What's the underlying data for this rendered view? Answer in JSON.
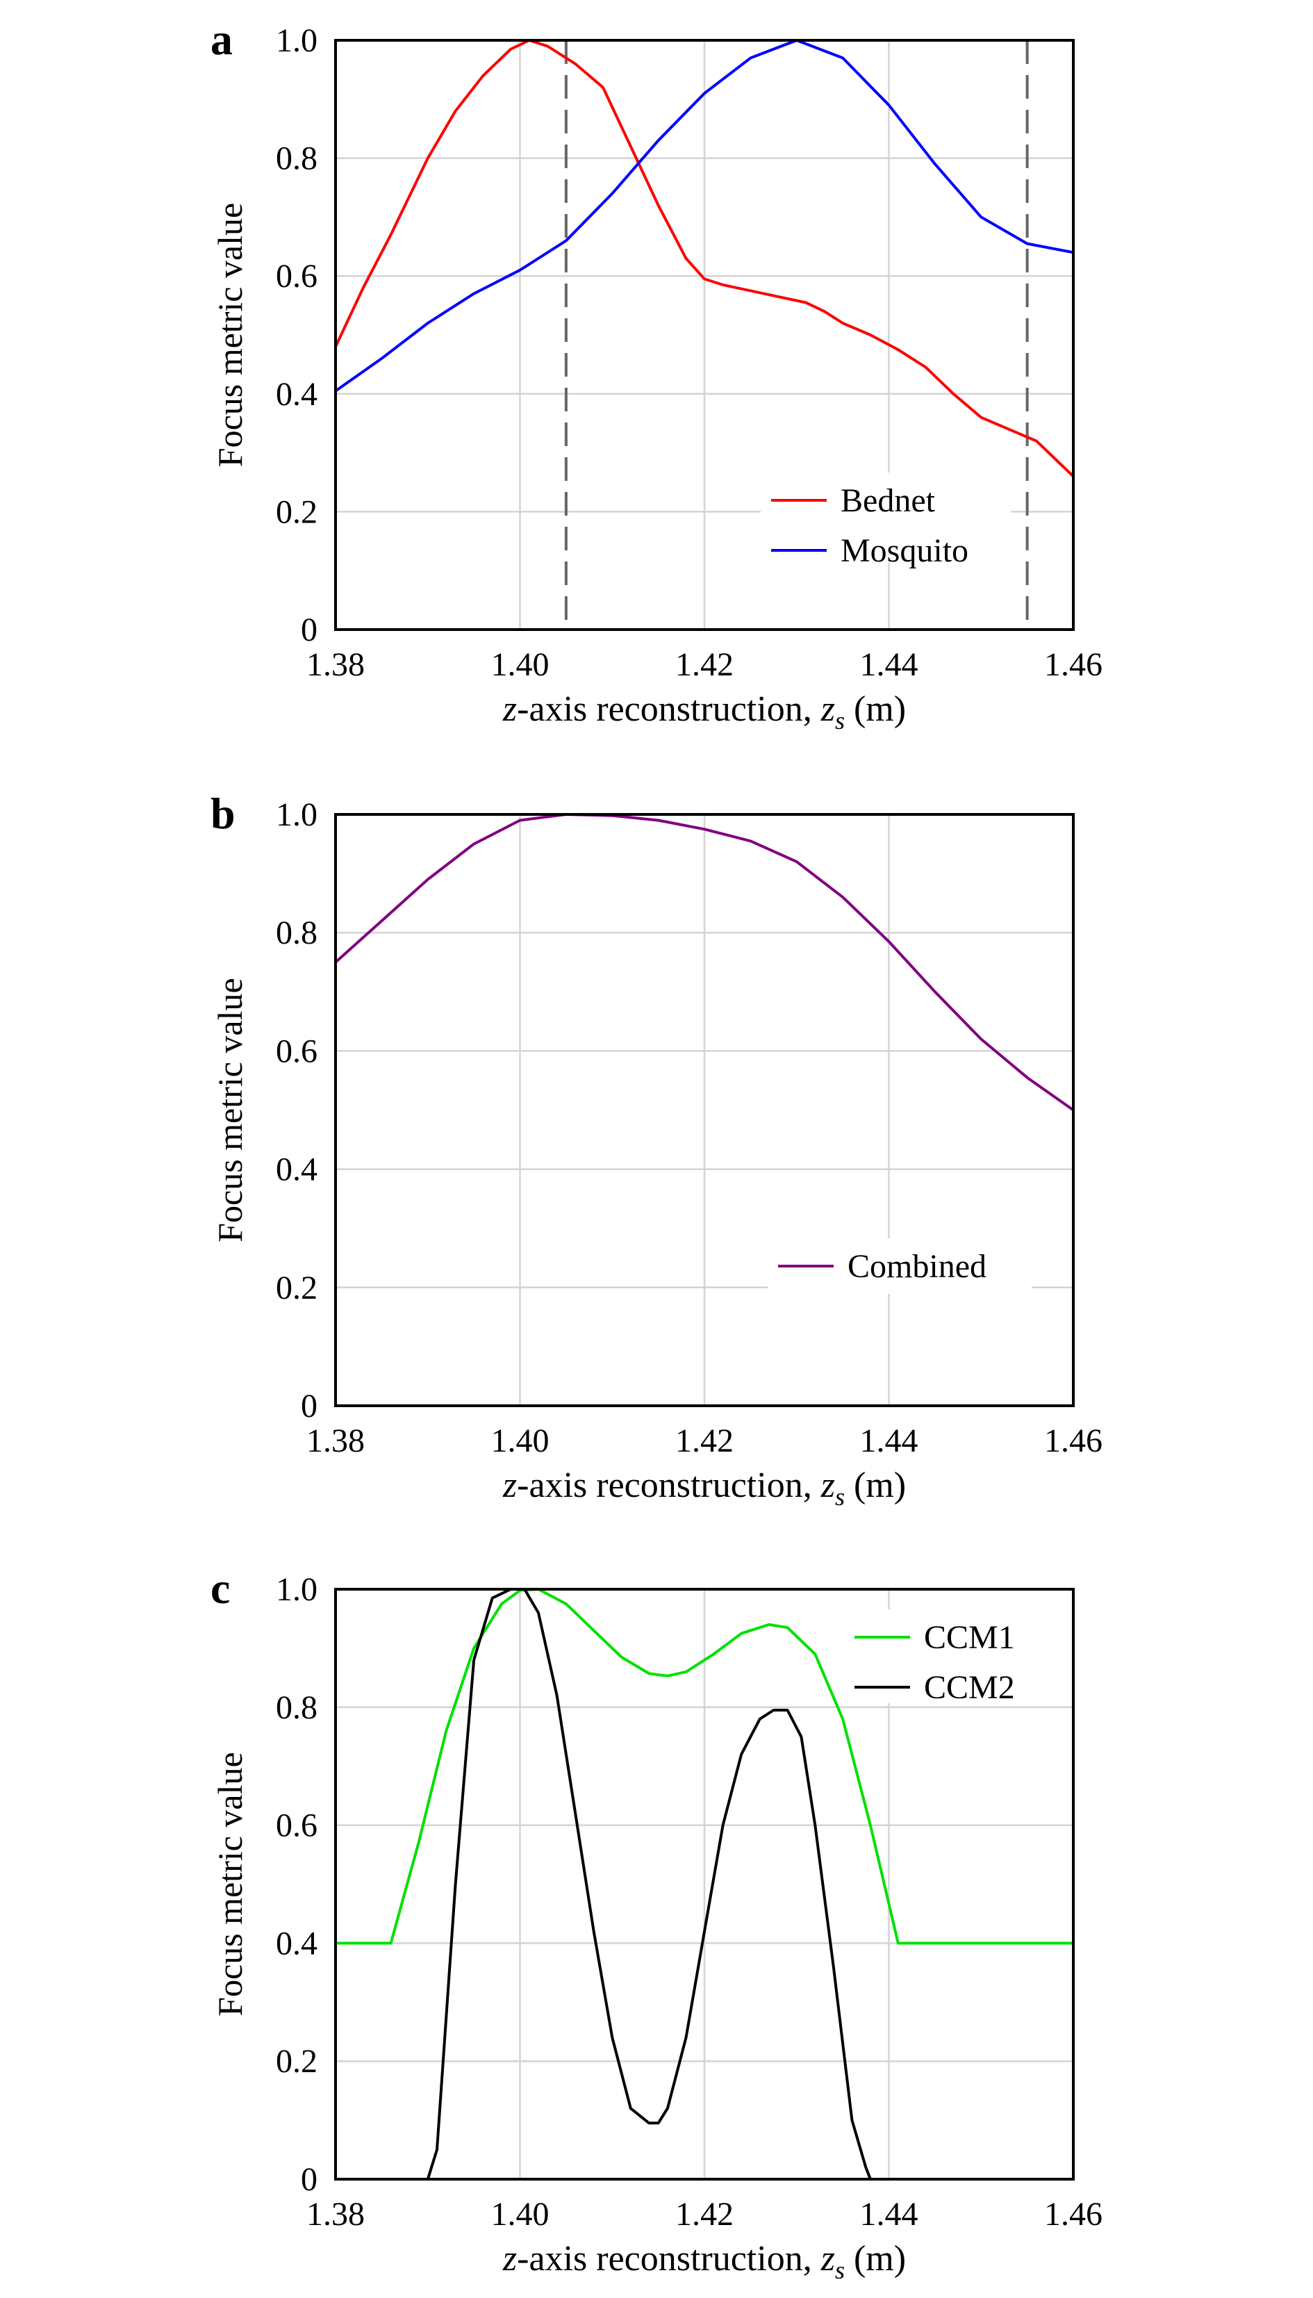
{
  "figure": {
    "panels": [
      {
        "letter": "a",
        "ylabel": "Focus metric value",
        "xlabel_var": "z",
        "xlabel_mid": "-axis reconstruction, ",
        "xlabel_sub_var": "z",
        "xlabel_sub": "s",
        "xlabel_unit": " (m)",
        "legend": [
          "Bednet",
          "Mosquito"
        ]
      },
      {
        "letter": "b",
        "ylabel": "Focus metric value",
        "xlabel_var": "z",
        "xlabel_mid": "-axis reconstruction, ",
        "xlabel_sub_var": "z",
        "xlabel_sub": "s",
        "xlabel_unit": " (m)",
        "legend": [
          "Combined"
        ]
      },
      {
        "letter": "c",
        "ylabel": "Focus metric value",
        "xlabel_var": "z",
        "xlabel_mid": "-axis reconstruction, ",
        "xlabel_sub_var": "z",
        "xlabel_sub": "s",
        "xlabel_unit": " (m)",
        "legend": [
          "CCM1",
          "CCM2"
        ]
      }
    ]
  },
  "chart_data": [
    {
      "type": "line",
      "panel": "a",
      "xlabel": "z-axis reconstruction, z_s (m)",
      "ylabel": "Focus metric value",
      "xlim": [
        1.38,
        1.46
      ],
      "ylim": [
        0,
        1.0
      ],
      "xticks": [
        "1.38",
        "1.40",
        "1.42",
        "1.44",
        "1.46"
      ],
      "yticks": [
        "0",
        "0.2",
        "0.4",
        "0.6",
        "0.8",
        "1.0"
      ],
      "grid": true,
      "legend_position": "bottom-right",
      "vlines_dashed": [
        1.405,
        1.455
      ],
      "series": [
        {
          "name": "Bednet",
          "color": "#ff0000",
          "x": [
            1.38,
            1.383,
            1.386,
            1.39,
            1.393,
            1.396,
            1.399,
            1.401,
            1.403,
            1.406,
            1.409,
            1.412,
            1.415,
            1.418,
            1.42,
            1.422,
            1.425,
            1.428,
            1.431,
            1.433,
            1.435,
            1.438,
            1.441,
            1.444,
            1.447,
            1.45,
            1.453,
            1.456,
            1.46
          ],
          "y": [
            0.48,
            0.58,
            0.67,
            0.8,
            0.88,
            0.94,
            0.985,
            1.0,
            0.99,
            0.96,
            0.92,
            0.82,
            0.72,
            0.63,
            0.595,
            0.585,
            0.575,
            0.565,
            0.555,
            0.54,
            0.52,
            0.5,
            0.475,
            0.445,
            0.4,
            0.36,
            0.34,
            0.32,
            0.26
          ]
        },
        {
          "name": "Mosquito",
          "color": "#0000ff",
          "x": [
            1.38,
            1.385,
            1.39,
            1.395,
            1.4,
            1.405,
            1.41,
            1.415,
            1.42,
            1.425,
            1.43,
            1.435,
            1.44,
            1.445,
            1.45,
            1.455,
            1.46
          ],
          "y": [
            0.405,
            0.46,
            0.52,
            0.57,
            0.61,
            0.66,
            0.74,
            0.83,
            0.91,
            0.97,
            1.0,
            0.97,
            0.89,
            0.79,
            0.7,
            0.655,
            0.64
          ]
        }
      ]
    },
    {
      "type": "line",
      "panel": "b",
      "xlabel": "z-axis reconstruction, z_s (m)",
      "ylabel": "Focus metric value",
      "xlim": [
        1.38,
        1.46
      ],
      "ylim": [
        0,
        1.0
      ],
      "xticks": [
        "1.38",
        "1.40",
        "1.42",
        "1.44",
        "1.46"
      ],
      "yticks": [
        "0",
        "0.2",
        "0.4",
        "0.6",
        "0.8",
        "1.0"
      ],
      "grid": true,
      "legend_position": "bottom-right",
      "series": [
        {
          "name": "Combined",
          "color": "#800080",
          "x": [
            1.38,
            1.385,
            1.39,
            1.395,
            1.4,
            1.405,
            1.41,
            1.415,
            1.42,
            1.425,
            1.43,
            1.435,
            1.44,
            1.445,
            1.45,
            1.455,
            1.46
          ],
          "y": [
            0.75,
            0.82,
            0.89,
            0.95,
            0.99,
            1.0,
            0.998,
            0.99,
            0.975,
            0.955,
            0.92,
            0.86,
            0.785,
            0.7,
            0.62,
            0.555,
            0.5
          ]
        }
      ]
    },
    {
      "type": "line",
      "panel": "c",
      "xlabel": "z-axis reconstruction, z_s (m)",
      "ylabel": "Focus metric value",
      "xlim": [
        1.38,
        1.46
      ],
      "ylim": [
        0,
        1.0
      ],
      "xticks": [
        "1.38",
        "1.40",
        "1.42",
        "1.44",
        "1.46"
      ],
      "yticks": [
        "0",
        "0.2",
        "0.4",
        "0.6",
        "0.8",
        "1.0"
      ],
      "grid": true,
      "legend_position": "top-right",
      "series": [
        {
          "name": "CCM1",
          "color": "#00e000",
          "x": [
            1.38,
            1.386,
            1.389,
            1.392,
            1.395,
            1.398,
            1.4,
            1.402,
            1.405,
            1.408,
            1.411,
            1.414,
            1.416,
            1.418,
            1.421,
            1.424,
            1.427,
            1.429,
            1.432,
            1.435,
            1.438,
            1.441,
            1.445,
            1.46
          ],
          "y": [
            0.4,
            0.4,
            0.57,
            0.76,
            0.9,
            0.975,
            0.998,
            1.0,
            0.975,
            0.93,
            0.885,
            0.857,
            0.853,
            0.86,
            0.89,
            0.925,
            0.94,
            0.935,
            0.89,
            0.78,
            0.6,
            0.4,
            0.4,
            0.4
          ]
        },
        {
          "name": "CCM2",
          "color": "#000000",
          "x": [
            1.38,
            1.39,
            1.391,
            1.393,
            1.395,
            1.397,
            1.399,
            1.4005,
            1.402,
            1.404,
            1.406,
            1.408,
            1.41,
            1.412,
            1.414,
            1.415,
            1.416,
            1.418,
            1.42,
            1.422,
            1.424,
            1.426,
            1.4275,
            1.429,
            1.4305,
            1.432,
            1.434,
            1.436,
            1.4375,
            1.438
          ],
          "y": [
            0,
            0,
            0.05,
            0.5,
            0.88,
            0.985,
            1.0,
            1.0,
            0.96,
            0.82,
            0.62,
            0.42,
            0.24,
            0.12,
            0.095,
            0.095,
            0.12,
            0.24,
            0.42,
            0.6,
            0.72,
            0.78,
            0.795,
            0.795,
            0.75,
            0.6,
            0.36,
            0.1,
            0.02,
            0
          ]
        }
      ]
    }
  ]
}
